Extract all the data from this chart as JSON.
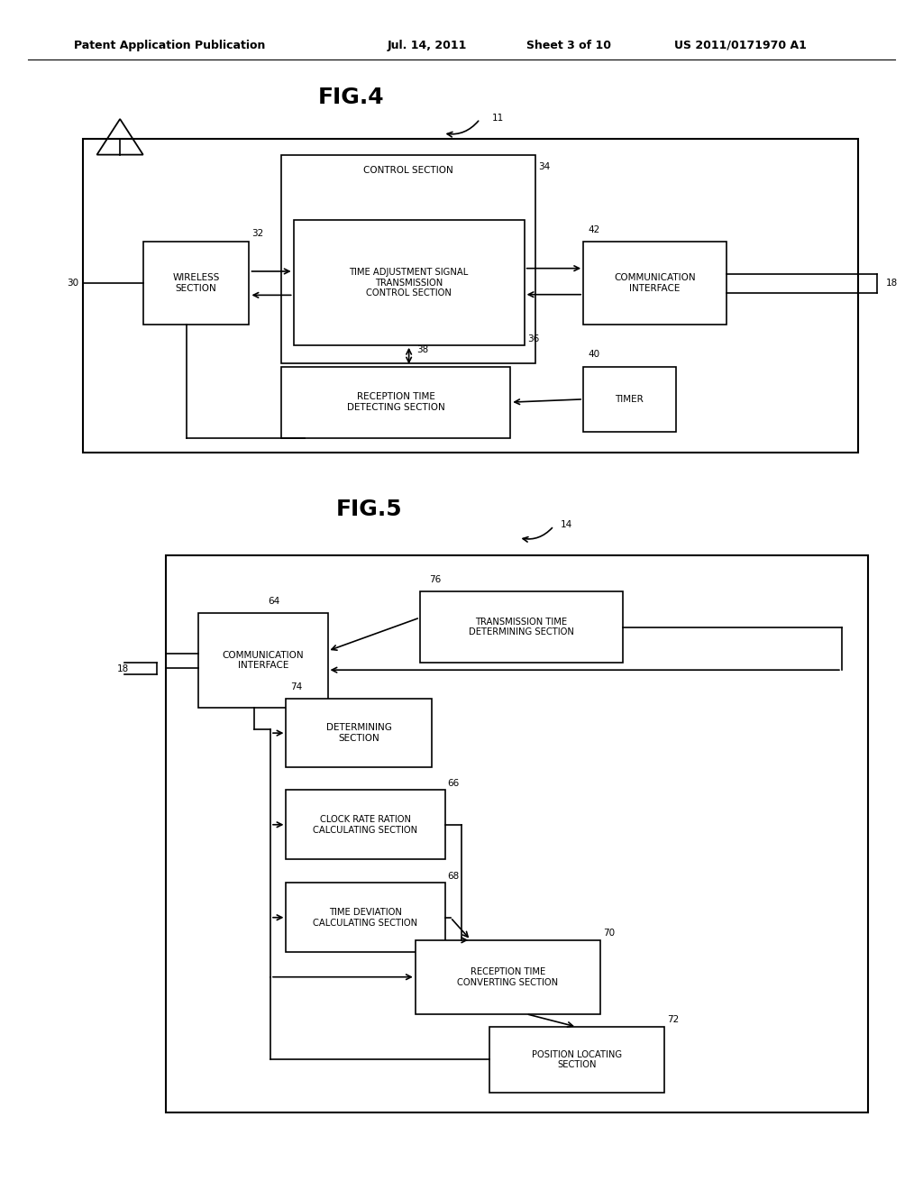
{
  "bg_color": "#ffffff",
  "header_text": "Patent Application Publication",
  "header_date": "Jul. 14, 2011",
  "header_sheet": "Sheet 3 of 10",
  "header_patent": "US 2011/0171970 A1",
  "fig4_title": "FIG.4",
  "fig5_title": "FIG.5",
  "fig4_label": "11",
  "fig5_label": "14"
}
